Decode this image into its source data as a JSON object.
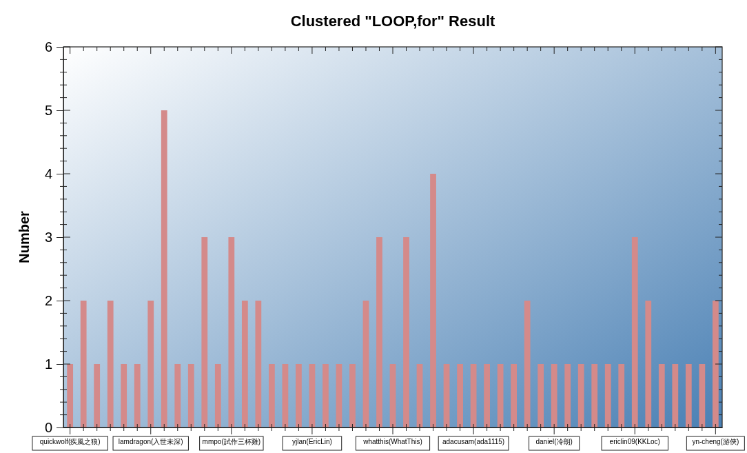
{
  "chart_data": {
    "type": "bar",
    "title": "Clustered \"LOOP,for\" Result",
    "ylabel": "Number",
    "categories": [
      "quickwolf(疾風之狼)",
      null,
      null,
      null,
      null,
      null,
      "lamdragon(入世未深)",
      null,
      null,
      null,
      null,
      null,
      "mmpo(試作三杯雞)",
      null,
      null,
      null,
      null,
      null,
      "yjlan(EricLin)",
      null,
      null,
      null,
      null,
      null,
      "whatthis(WhatThis)",
      null,
      null,
      null,
      null,
      null,
      "adacusam(ada1115)",
      null,
      null,
      null,
      null,
      null,
      "daniel(冷朗)",
      null,
      null,
      null,
      null,
      null,
      "ericlin09(KKLoc)",
      null,
      null,
      null,
      null,
      null,
      "yn-cheng(游俠)"
    ],
    "values": [
      1,
      2,
      1,
      2,
      1,
      1,
      2,
      5,
      1,
      1,
      3,
      1,
      3,
      2,
      2,
      1,
      1,
      1,
      1,
      1,
      1,
      1,
      2,
      3,
      1,
      3,
      1,
      4,
      1,
      1,
      1,
      1,
      1,
      1,
      2,
      1,
      1,
      1,
      1,
      1,
      1,
      1,
      3,
      2,
      1,
      1,
      1,
      1,
      2
    ],
    "color": "#d48a8a",
    "ylim": [
      0,
      6
    ],
    "yticks": [
      0,
      1,
      2,
      3,
      4,
      5,
      6
    ],
    "grid": false
  }
}
